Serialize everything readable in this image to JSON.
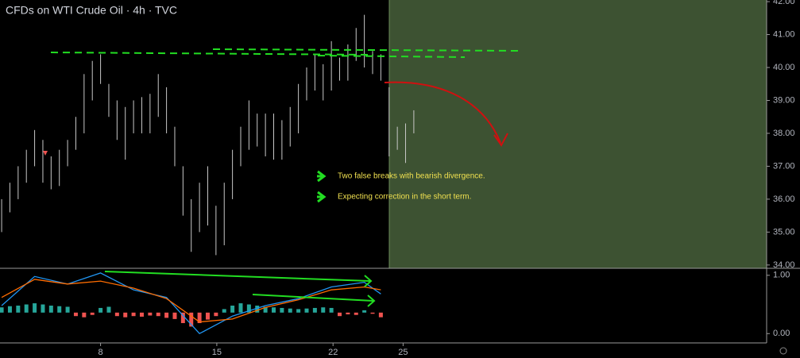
{
  "chart_data": [
    {
      "type": "ohlc",
      "title": "CFDs on WTI Crude Oil · 4h · TVC",
      "color": "#c8c8c8",
      "x": [
        0,
        1,
        2,
        3,
        4,
        5,
        6,
        7,
        8,
        9,
        10,
        11,
        12,
        13,
        14,
        15,
        16,
        17,
        18,
        19,
        20,
        21,
        22,
        23,
        24,
        25,
        26,
        27,
        28,
        29,
        30,
        31,
        32,
        33,
        34,
        35,
        36,
        37,
        38,
        39,
        40,
        41,
        42,
        43,
        44,
        45,
        46,
        47,
        48,
        49,
        50
      ],
      "high": [
        36.0,
        36.5,
        37.0,
        37.5,
        38.1,
        37.8,
        37.3,
        37.5,
        37.8,
        38.5,
        39.8,
        40.2,
        40.4,
        39.5,
        39.0,
        38.8,
        39.0,
        39.1,
        39.2,
        39.8,
        39.4,
        38.2,
        37.0,
        36.0,
        36.5,
        37.0,
        35.8,
        36.5,
        37.5,
        38.2,
        39.0,
        38.6,
        38.6,
        38.6,
        38.4,
        38.8,
        39.5,
        40.0,
        40.4,
        40.1,
        40.8,
        40.3,
        40.7,
        41.2,
        41.6,
        40.5,
        40.4,
        39.4,
        38.2,
        38.3,
        38.7
      ],
      "low": [
        35.0,
        35.6,
        36.0,
        36.5,
        37.0,
        36.5,
        36.3,
        36.4,
        37.0,
        37.5,
        38.0,
        39.0,
        39.5,
        38.5,
        37.8,
        37.2,
        38.0,
        38.0,
        38.0,
        38.5,
        38.0,
        37.0,
        35.5,
        34.4,
        35.0,
        35.2,
        34.3,
        34.6,
        36.0,
        37.0,
        37.5,
        37.6,
        37.3,
        37.2,
        37.2,
        37.6,
        38.0,
        39.0,
        39.3,
        39.0,
        39.3,
        39.6,
        39.6,
        40.2,
        40.0,
        39.8,
        39.6,
        37.3,
        37.5,
        37.1,
        38.0
      ],
      "xlim": [
        -0.2,
        92.8
      ],
      "xticks": [
        {
          "value": 12.0,
          "label": "8"
        },
        {
          "value": 26.1,
          "label": "15"
        },
        {
          "value": 40.2,
          "label": "22"
        },
        {
          "value": 48.7,
          "label": "25"
        }
      ],
      "ylim": [
        33.9,
        42.05
      ],
      "yticks": [
        {
          "value": 34,
          "label": "34.00"
        },
        {
          "value": 35,
          "label": "35.00"
        },
        {
          "value": 36,
          "label": "36.00"
        },
        {
          "value": 37,
          "label": "37.00"
        },
        {
          "value": 38,
          "label": "38.00"
        },
        {
          "value": 39,
          "label": "39.00"
        },
        {
          "value": 40,
          "label": "40.00"
        },
        {
          "value": 41,
          "label": "41.00"
        },
        {
          "value": 42,
          "label": "42.00"
        }
      ],
      "annotations": [
        "Two false breaks with bearish divergence.",
        "Expecting correction in the short term."
      ]
    },
    {
      "type": "macd",
      "x": [
        0,
        4,
        8,
        12,
        16,
        20,
        24,
        28,
        32,
        36,
        40,
        44,
        46
      ],
      "series": [
        {
          "color": "#2196f3",
          "values": [
            0.48,
            0.98,
            0.85,
            1.04,
            0.75,
            0.62,
            0.0,
            0.3,
            0.48,
            0.6,
            0.8,
            0.88,
            0.68
          ]
        },
        {
          "color": "#ff6d00",
          "values": [
            0.62,
            0.93,
            0.85,
            0.9,
            0.78,
            0.6,
            0.2,
            0.25,
            0.45,
            0.58,
            0.75,
            0.8,
            0.75
          ]
        }
      ],
      "histogram": {
        "baseline": 0.36,
        "up_color": "#26a69a",
        "down_color": "#ef5350",
        "values": [
          0.45,
          0.47,
          0.48,
          0.5,
          0.52,
          0.5,
          0.48,
          0.47,
          0.46,
          0.3,
          0.28,
          0.32,
          0.44,
          0.46,
          0.3,
          0.28,
          0.3,
          0.29,
          0.31,
          0.3,
          0.27,
          0.25,
          0.18,
          0.12,
          0.18,
          0.24,
          0.3,
          0.42,
          0.48,
          0.52,
          0.5,
          0.48,
          0.46,
          0.45,
          0.44,
          0.43,
          0.42,
          0.43,
          0.44,
          0.45,
          0.44,
          0.3,
          0.33,
          0.32,
          0.4,
          0.34,
          0.28
        ]
      },
      "ylim": [
        -0.16,
        1.12
      ],
      "yticks": [
        {
          "value": 1,
          "label": "1.00"
        },
        {
          "value": 0,
          "label": "0.00"
        }
      ]
    }
  ]
}
